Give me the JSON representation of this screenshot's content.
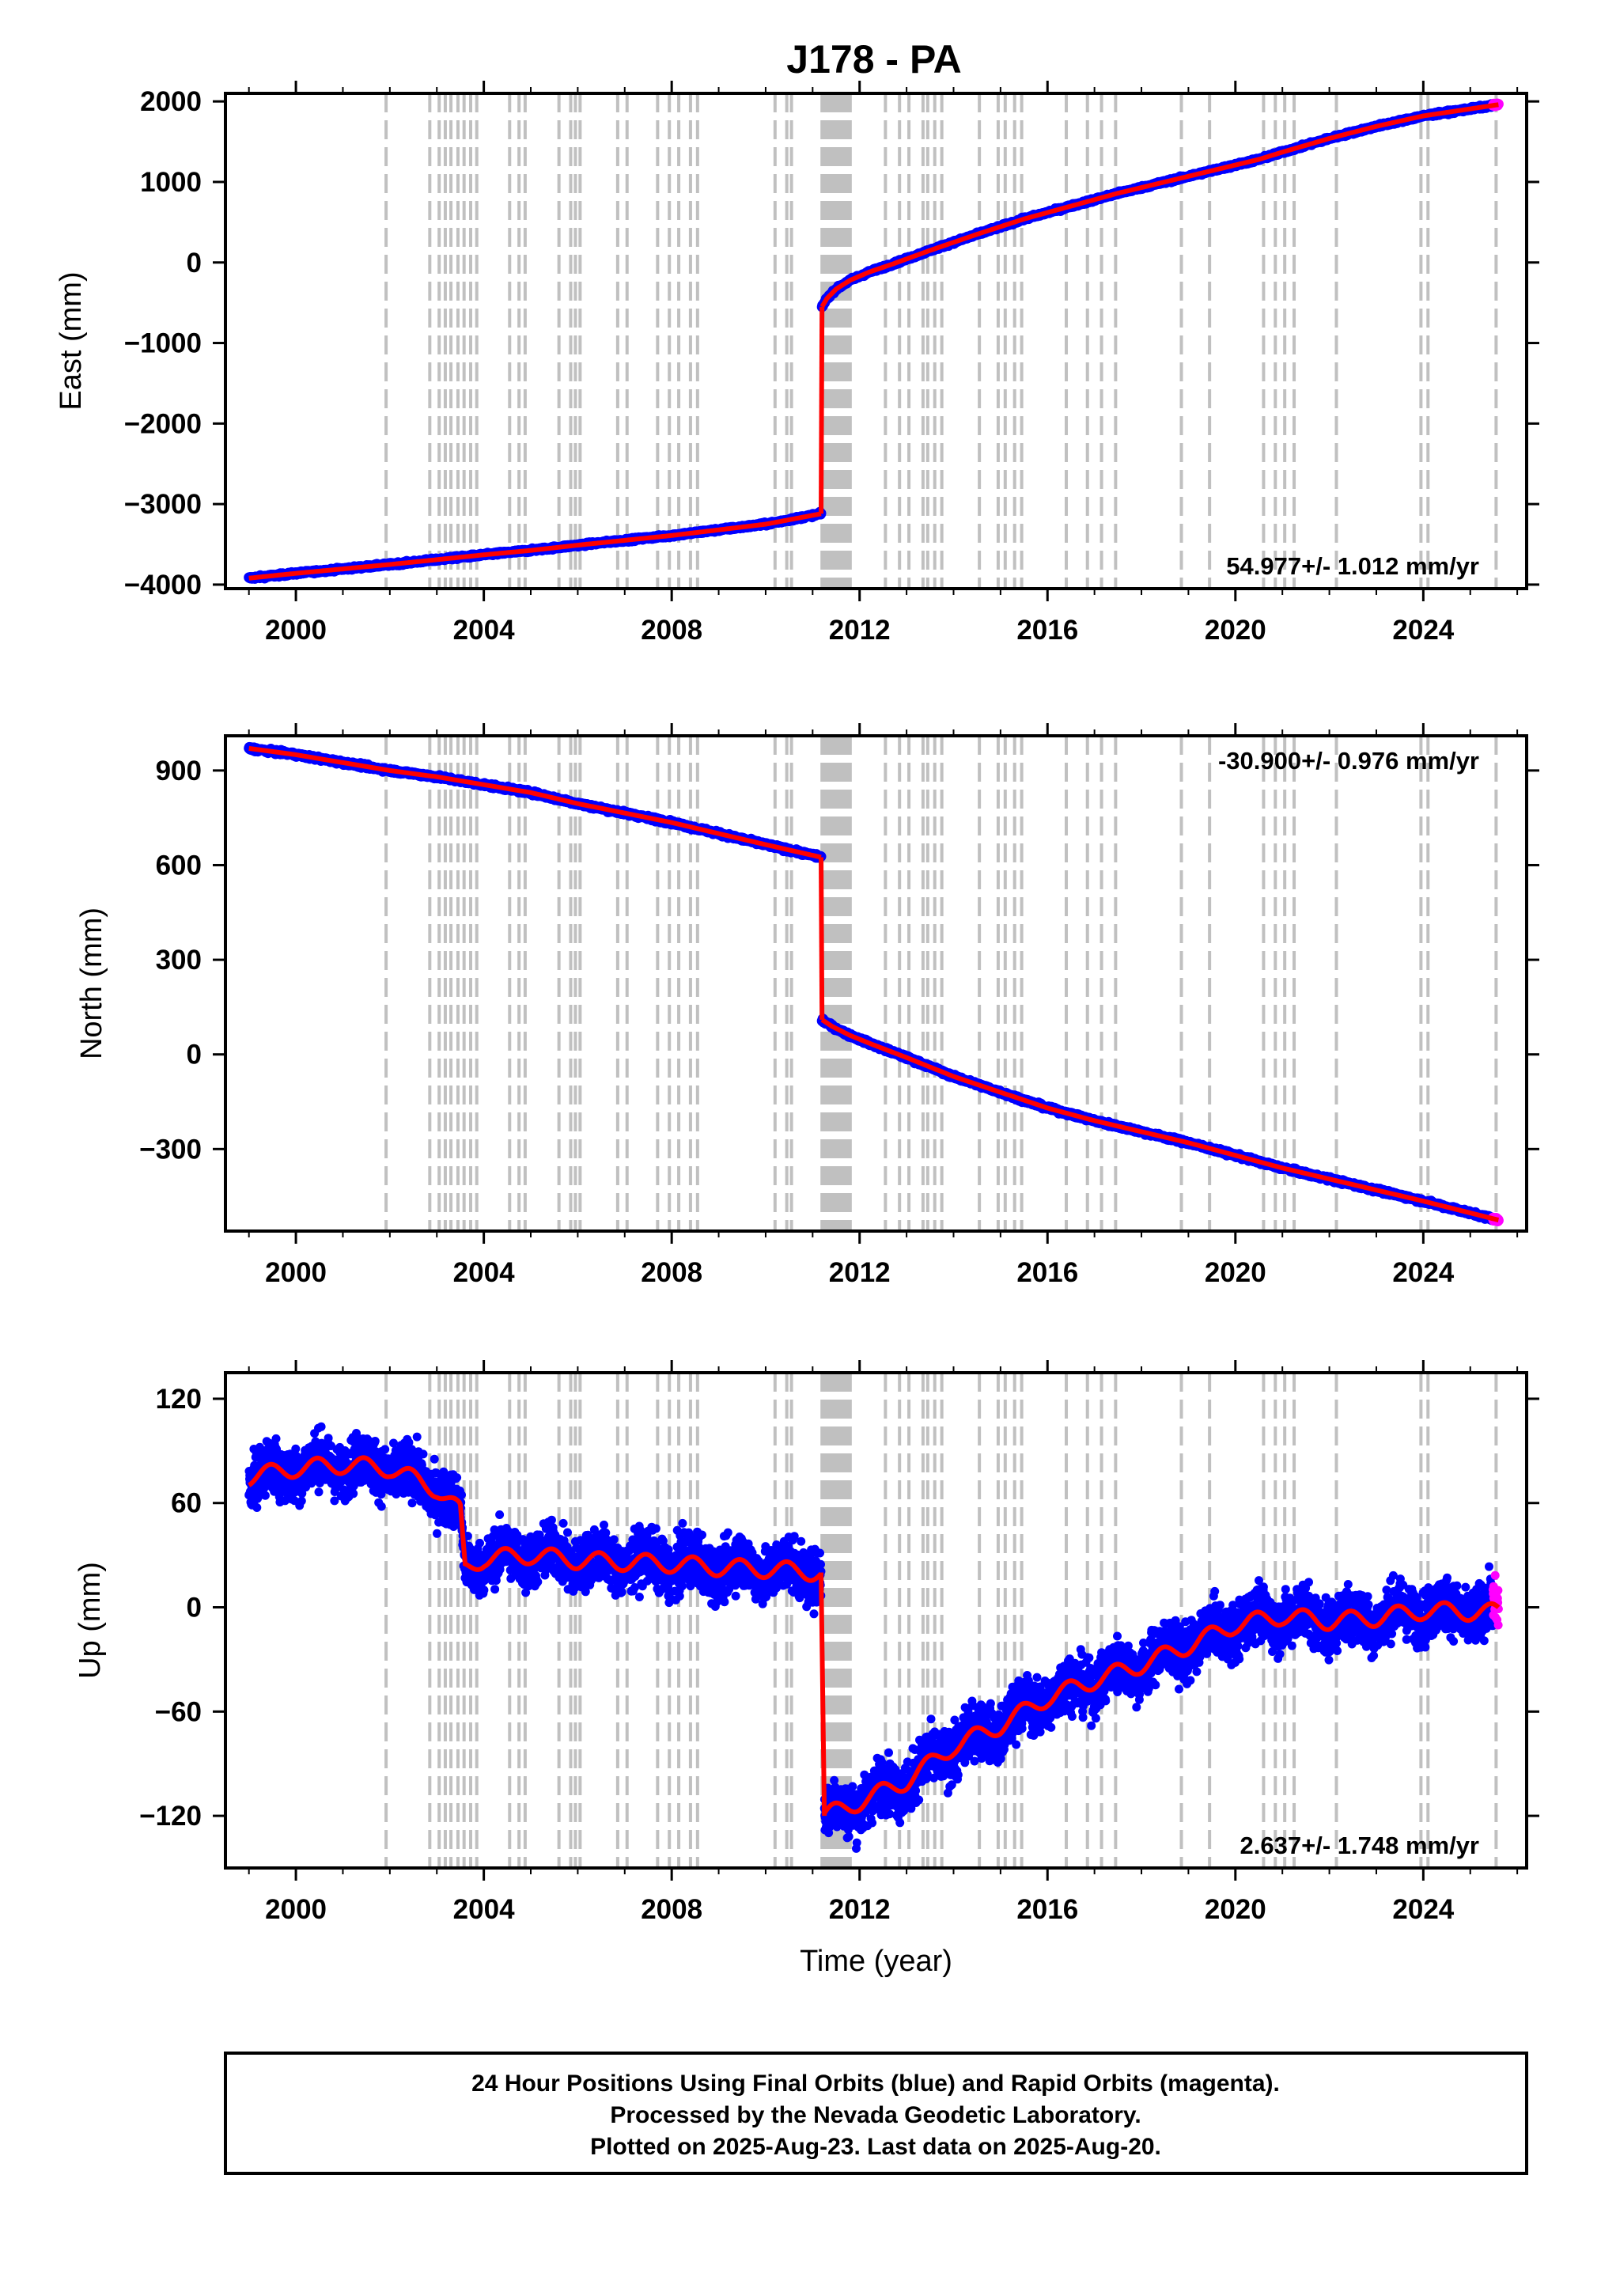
{
  "title": "J178 - PA",
  "colors": {
    "final": "#0000ff",
    "rapid": "#ff00ff",
    "model": "#ff0000",
    "event": "#c0c0c0"
  },
  "events": [
    2001.92,
    2002.85,
    2003.05,
    2003.18,
    2003.3,
    2003.45,
    2003.58,
    2003.72,
    2003.85,
    2004.55,
    2004.75,
    2004.88,
    2005.6,
    2005.85,
    2005.95,
    2006.05,
    2006.85,
    2007.05,
    2007.7,
    2007.95,
    2008.15,
    2008.4,
    2008.55,
    2010.2,
    2010.45,
    2010.55,
    2011.2,
    2011.25,
    2011.3,
    2011.35,
    2011.4,
    2011.45,
    2011.5,
    2011.55,
    2011.6,
    2011.65,
    2011.7,
    2011.75,
    2011.8,
    2012.55,
    2012.85,
    2013.05,
    2013.35,
    2013.45,
    2013.6,
    2013.75,
    2014.55,
    2014.95,
    2015.1,
    2015.3,
    2015.45,
    2016.4,
    2016.85,
    2017.15,
    2017.45,
    2018.85,
    2019.45,
    2020.6,
    2020.85,
    2021.05,
    2021.25,
    2022.15,
    2023.95,
    2024.1,
    2025.55
  ],
  "chart_data": [
    {
      "type": "scatter",
      "component": "East",
      "ylabel": "East (mm)",
      "xlim": [
        1998.5,
        2026.2
      ],
      "ylim": [
        -4050,
        2100
      ],
      "yticks": [
        2000,
        1000,
        0,
        -1000,
        -2000,
        -3000,
        -4000
      ],
      "yticklabels": [
        "2000",
        "1000",
        "0",
        "−1000",
        "−2000",
        "−3000",
        "−4000"
      ],
      "rate": "54.977+/- 1.012 mm/yr",
      "rate_pos": "bottom-right",
      "series": [
        {
          "color": "#0000ff",
          "x": [
            1999.0,
            2000.0,
            2001.0,
            2002.0,
            2003.0,
            2004.0,
            2005.0,
            2006.0,
            2007.0,
            2008.0,
            2009.0,
            2010.0,
            2011.18
          ],
          "y": [
            -3920,
            -3860,
            -3805,
            -3750,
            -3690,
            -3630,
            -3575,
            -3510,
            -3450,
            -3390,
            -3320,
            -3250,
            -3120
          ]
        },
        {
          "color": "#0000ff",
          "x": [
            2011.2,
            2011.3,
            2011.5,
            2011.8,
            2012.2,
            2012.7,
            2013.5,
            2014.5,
            2015.5,
            2016.5,
            2017.5,
            2018.5,
            2019.5,
            2020.5,
            2021.0,
            2022.0,
            2023.0,
            2024.0,
            2025.6
          ],
          "y": [
            -550,
            -450,
            -330,
            -220,
            -120,
            -20,
            150,
            350,
            540,
            700,
            860,
            1000,
            1140,
            1280,
            1370,
            1540,
            1690,
            1820,
            1960
          ]
        }
      ]
    },
    {
      "type": "scatter",
      "component": "North",
      "ylabel": "North (mm)",
      "xlim": [
        1998.5,
        2026.2
      ],
      "ylim": [
        -560,
        1010
      ],
      "yticks": [
        900,
        600,
        300,
        0,
        -300
      ],
      "yticklabels": [
        "900",
        "600",
        "300",
        "0",
        "−300"
      ],
      "rate": "-30.900+/- 0.976 mm/yr",
      "rate_pos": "top-right",
      "series": [
        {
          "color": "#0000ff",
          "x": [
            1999.0,
            2000.0,
            2001.0,
            2002.0,
            2003.0,
            2004.0,
            2005.0,
            2006.0,
            2007.0,
            2008.0,
            2009.0,
            2010.0,
            2011.18
          ],
          "y": [
            970,
            950,
            925,
            900,
            880,
            855,
            830,
            795,
            765,
            735,
            700,
            665,
            625
          ]
        },
        {
          "color": "#0000ff",
          "x": [
            2011.2,
            2011.4,
            2011.8,
            2012.3,
            2013.0,
            2014.0,
            2015.0,
            2016.0,
            2017.0,
            2018.0,
            2019.0,
            2020.0,
            2021.0,
            2022.0,
            2023.0,
            2024.0,
            2025.6
          ],
          "y": [
            110,
            90,
            60,
            30,
            -10,
            -70,
            -120,
            -170,
            -210,
            -245,
            -280,
            -320,
            -360,
            -395,
            -430,
            -465,
            -525
          ]
        }
      ]
    },
    {
      "type": "scatter",
      "component": "Up",
      "ylabel": "Up (mm)",
      "xlabel": "Time (year)",
      "xlim": [
        1998.5,
        2026.2
      ],
      "ylim": [
        -150,
        135
      ],
      "yticks": [
        120,
        60,
        0,
        -60,
        -120
      ],
      "yticklabels": [
        "120",
        "60",
        "0",
        "−60",
        "−120"
      ],
      "rate": "2.637+/- 1.748 mm/yr",
      "rate_pos": "bottom-right",
      "series": [
        {
          "color": "#0000ff",
          "x": [
            1999.0,
            2000.0,
            2001.0,
            2002.0,
            2003.0,
            2003.5,
            2003.6,
            2004.0,
            2005.0,
            2006.0,
            2007.0,
            2008.0,
            2009.0,
            2010.0,
            2011.18
          ],
          "y": [
            75,
            80,
            82,
            80,
            68,
            55,
            22,
            28,
            30,
            27,
            26,
            25,
            23,
            22,
            20
          ]
        },
        {
          "color": "#0000ff",
          "x": [
            2011.25,
            2012.0,
            2013.0,
            2014.0,
            2015.0,
            2016.0,
            2017.0,
            2018.0,
            2019.0,
            2020.0,
            2021.0,
            2022.0,
            2023.0,
            2024.0,
            2025.6
          ],
          "y": [
            -120,
            -112,
            -100,
            -80,
            -68,
            -52,
            -42,
            -33,
            -22,
            -10,
            -5,
            -8,
            -6,
            -2,
            -3
          ]
        }
      ]
    }
  ],
  "xticks": [
    2000,
    2004,
    2008,
    2012,
    2016,
    2020,
    2024
  ],
  "xticklabels": [
    "2000",
    "2004",
    "2008",
    "2012",
    "2016",
    "2020",
    "2024"
  ],
  "footer": {
    "line1": "24 Hour Positions Using Final Orbits (blue) and Rapid Orbits (magenta).",
    "line2": "Processed by the Nevada Geodetic Laboratory.",
    "line3": "Plotted on 2025-Aug-23. Last data on 2025-Aug-20."
  }
}
